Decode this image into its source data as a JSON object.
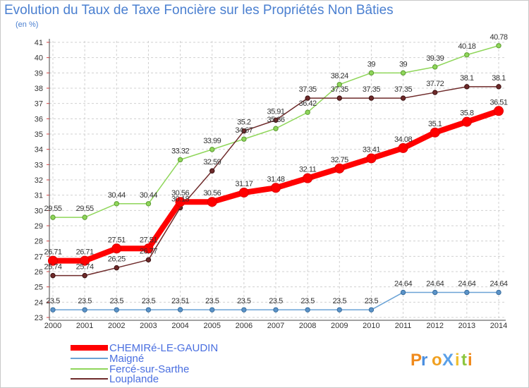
{
  "title": "Evolution du Taux de Taxe Foncière sur les Propriétés Non Bâties",
  "subtitle": "(en %)",
  "logo": "ProXiti",
  "colors": {
    "chemire": "#ff0000",
    "maigne": "#6ba3d6",
    "ferce": "#8fd65a",
    "louplande": "#6e2a2a"
  },
  "chart_data": {
    "type": "line",
    "title": "Evolution du Taux de Taxe Foncière sur les Propriétés Non Bâties",
    "ylabel": "(en %)",
    "x": [
      "2000",
      "2001",
      "2002",
      "2003",
      "2004",
      "2005",
      "2006",
      "2007",
      "2008",
      "2009",
      "2010",
      "2011",
      "2012",
      "2013",
      "2014"
    ],
    "yticks": [
      23,
      24,
      25,
      26,
      27,
      28,
      29,
      30,
      31,
      32,
      33,
      34,
      35,
      36,
      37,
      38,
      39,
      40,
      41
    ],
    "ylim": [
      23,
      41
    ],
    "legend": "bottom-left",
    "series": [
      {
        "name": "CHEMIRé-LE-GAUDIN",
        "key": "chemire",
        "values": [
          26.71,
          26.71,
          27.51,
          27.51,
          30.56,
          30.56,
          31.17,
          31.48,
          32.11,
          32.75,
          33.41,
          34.08,
          35.1,
          35.8,
          36.51
        ],
        "labels": [
          "26.71",
          "26.71",
          "27.51",
          "27.51",
          "30.56",
          "30.56",
          "31.17",
          "31.48",
          "32.11",
          "32.75",
          "33.41",
          "34.08",
          "35.1",
          "35.8",
          "36.51"
        ]
      },
      {
        "name": "Maigné",
        "key": "maigne",
        "values": [
          23.5,
          23.5,
          23.5,
          23.5,
          23.51,
          23.5,
          23.5,
          23.5,
          23.5,
          23.5,
          23.5,
          24.64,
          24.64,
          24.64,
          24.64
        ],
        "labels": [
          "23.5",
          "23.5",
          "23.5",
          "23.5",
          "23.51",
          "23.5",
          "23.5",
          "23.5",
          "23.5",
          "23.5",
          "23.5",
          "24.64",
          "24.64",
          "24.64",
          "24.64"
        ]
      },
      {
        "name": "Fercé-sur-Sarthe",
        "key": "ferce",
        "values": [
          29.55,
          29.55,
          30.44,
          30.44,
          33.32,
          33.99,
          34.67,
          35.36,
          36.42,
          38.24,
          39,
          39,
          39.39,
          40.18,
          40.78
        ],
        "labels": [
          "29.55",
          "29.55",
          "30.44",
          "30.44",
          "33.32",
          "33.99",
          "34.67",
          "35.36",
          "36.42",
          "38.24",
          "39",
          "39",
          "39.39",
          "40.18",
          "40.78"
        ]
      },
      {
        "name": "Louplande",
        "key": "louplande",
        "values": [
          25.74,
          25.74,
          26.25,
          26.77,
          30.18,
          32.59,
          35.2,
          35.91,
          37.35,
          37.35,
          37.35,
          37.35,
          37.72,
          38.1,
          38.1
        ],
        "labels": [
          "25.74",
          "25.74",
          "26.25",
          "26.77",
          "30.18",
          "32.59",
          "35.2",
          "35.91",
          "37.35",
          "37.35",
          "37.35",
          "37.35",
          "37.72",
          "38.1",
          "38.1"
        ]
      }
    ]
  }
}
